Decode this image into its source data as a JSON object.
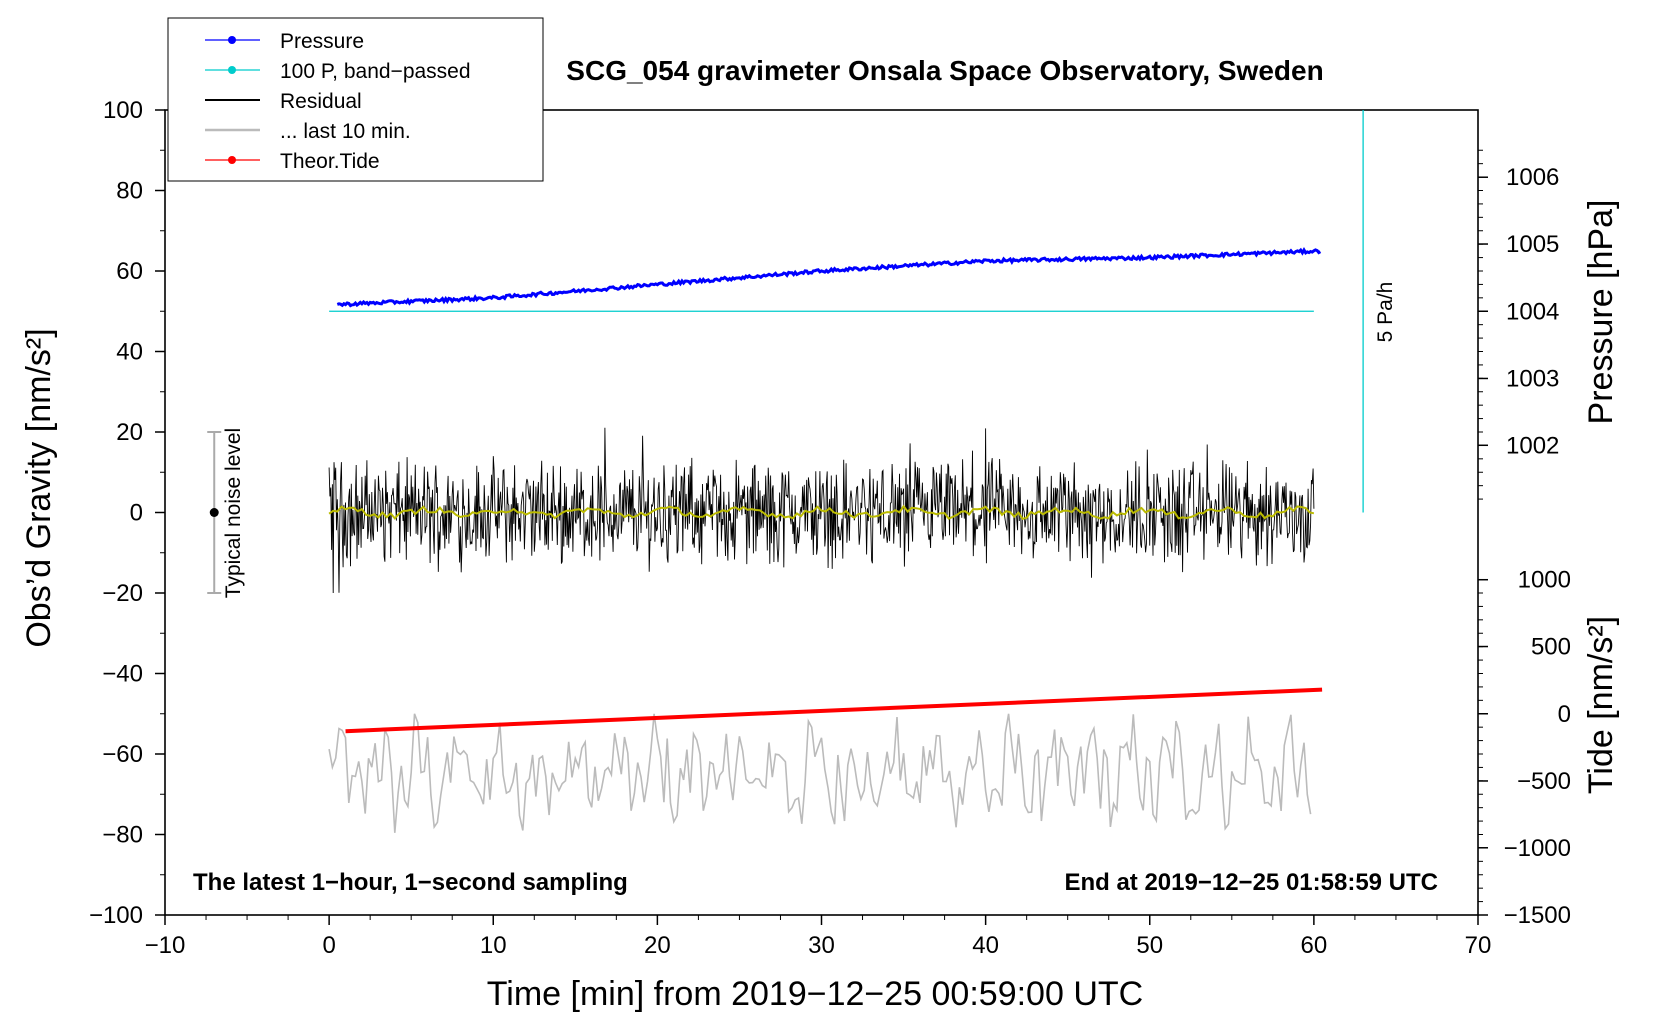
{
  "chart_data": {
    "type": "line",
    "title": "SCG_054 gravimeter Onsala Space Observatory, Sweden",
    "xlabel": "Time [min] from 2019−12−25 00:59:00 UTC",
    "ylabel_left": "Obs’d Gravity [nm/s²]",
    "ylabel_right_top": "Pressure [hPa]",
    "ylabel_right_bottom": "Tide [nm/s²]",
    "xlim": [
      -10,
      70
    ],
    "ylim": [
      -100,
      100
    ],
    "x_ticks": [
      "−10",
      "0",
      "10",
      "20",
      "30",
      "40",
      "50",
      "60",
      "70"
    ],
    "x_tick_values": [
      -10,
      0,
      10,
      20,
      30,
      40,
      50,
      60,
      70
    ],
    "y_ticks": [
      "100",
      "80",
      "60",
      "40",
      "20",
      "0",
      "−20",
      "−40",
      "−60",
      "−80",
      "−100"
    ],
    "y_tick_values": [
      100,
      80,
      60,
      40,
      20,
      0,
      -20,
      -40,
      -60,
      -80,
      -100
    ],
    "pressure_axis": {
      "ticks": [
        "1006",
        "1005",
        "1004",
        "1003",
        "1002"
      ],
      "tick_values": [
        1006,
        1005,
        1004,
        1003,
        1002
      ],
      "gravity_equiv": [
        83.3,
        66.7,
        50,
        33.3,
        16.7
      ]
    },
    "tide_axis": {
      "ticks": [
        "1000",
        "500",
        "0",
        "−500",
        "−1000",
        "−1500"
      ],
      "tick_values": [
        1000,
        500,
        0,
        -500,
        -1000,
        -1500
      ],
      "gravity_equiv": [
        -16.7,
        -33.3,
        -50,
        -66.7,
        -83.3,
        -100
      ]
    },
    "legend": {
      "position": "top-left",
      "entries": [
        {
          "label": "Pressure",
          "color": "#0000ff",
          "marker": true
        },
        {
          "label": "100 P, band−passed",
          "color": "#00cccc",
          "marker": true
        },
        {
          "label": "Residual",
          "color": "#000000",
          "marker": false
        },
        {
          "label": "... last 10 min.",
          "color": "#bbbbbb",
          "marker": false
        },
        {
          "label": "Theor.Tide",
          "color": "#ff0000",
          "marker": true
        }
      ]
    },
    "series": [
      {
        "name": "Pressure",
        "color": "#0000ff",
        "unit": "hPa",
        "x": [
          0.5,
          10,
          20,
          30,
          40,
          50,
          60.5
        ],
        "y": [
          1004.1,
          1004.2,
          1004.4,
          1004.6,
          1004.75,
          1004.8,
          1004.9
        ]
      },
      {
        "name": "100 P, band−passed",
        "color": "#00cccc",
        "unit": "nm/s²",
        "x": [
          0,
          60
        ],
        "y": [
          50,
          50
        ]
      },
      {
        "name": "Residual",
        "color": "#000000",
        "unit": "nm/s²",
        "x_range": [
          0,
          60
        ],
        "mean": 0,
        "amplitude": 18
      },
      {
        "name": "Residual smoothed",
        "color": "#bbbb00",
        "unit": "nm/s²",
        "x_range": [
          0,
          60
        ],
        "mean": 0,
        "amplitude": 1.5
      },
      {
        "name": "... last 10 min.",
        "color": "#bbbbbb",
        "unit": "nm/s²",
        "x_range": [
          0,
          60
        ],
        "mean": -65,
        "amplitude": 14
      },
      {
        "name": "Theor.Tide",
        "color": "#ff0000",
        "unit": "nm/s²",
        "x": [
          1,
          60.5
        ],
        "y": [
          -130,
          180
        ]
      }
    ],
    "noise_bar": {
      "label": "Typical noise level",
      "x": -7,
      "center": 0,
      "low": -20,
      "high": 20
    },
    "rate_bar": {
      "label": "5 Pa/h",
      "x": 63,
      "from": 0,
      "to": 100
    },
    "annotations": {
      "bottom_left": "The latest 1−hour, 1−second sampling",
      "bottom_right": "End at 2019−12−25 01:58:59 UTC"
    }
  }
}
